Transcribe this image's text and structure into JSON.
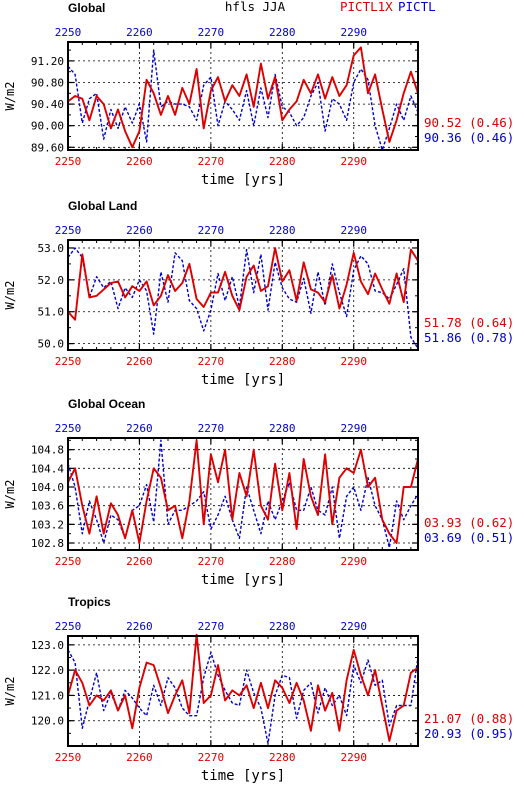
{
  "header": {
    "variable": "hfls JJA",
    "series_label_1": "PICTL1X",
    "series_label_2": "PICTL"
  },
  "colors": {
    "series_1": "#dd0000",
    "series_2": "#0000cc",
    "axis": "#000000"
  },
  "chart_data": [
    {
      "type": "line",
      "title": "Global",
      "xlabel": "time [yrs]",
      "ylabel": "W/m2",
      "xlim": [
        2250,
        2299
      ],
      "ylim": [
        89.55,
        91.55
      ],
      "x_ticks": [
        2250,
        2260,
        2270,
        2280,
        2290
      ],
      "x_tick_labels_bottom": [
        "2250",
        "2260",
        "2270",
        "2280",
        "2290"
      ],
      "x_tick_labels_top": [
        "2250",
        "2260",
        "2270",
        "2280",
        "2290"
      ],
      "y_ticks": [
        89.6,
        90.0,
        90.4,
        90.8,
        91.2
      ],
      "y_tick_labels": [
        "89.60",
        "90.00",
        "90.40",
        "90.80",
        "91.20"
      ],
      "grid": true,
      "x": [
        2250,
        2251,
        2252,
        2253,
        2254,
        2255,
        2256,
        2257,
        2258,
        2259,
        2260,
        2261,
        2262,
        2263,
        2264,
        2265,
        2266,
        2267,
        2268,
        2269,
        2270,
        2271,
        2272,
        2273,
        2274,
        2275,
        2276,
        2277,
        2278,
        2279,
        2280,
        2281,
        2282,
        2283,
        2284,
        2285,
        2286,
        2287,
        2288,
        2289,
        2290,
        2291,
        2292,
        2293,
        2294,
        2295,
        2296,
        2297,
        2298,
        2299
      ],
      "series": [
        {
          "name": "PICTL1X",
          "color": "#dd0000",
          "dash": "solid",
          "values": [
            90.45,
            90.55,
            90.5,
            90.1,
            90.55,
            90.4,
            89.95,
            90.3,
            89.9,
            89.6,
            89.9,
            90.85,
            90.6,
            90.2,
            90.55,
            90.2,
            90.7,
            90.4,
            91.05,
            89.95,
            90.65,
            90.9,
            90.45,
            90.75,
            90.55,
            90.95,
            90.35,
            91.15,
            90.5,
            90.9,
            90.1,
            90.3,
            90.45,
            90.85,
            90.6,
            90.95,
            90.5,
            90.9,
            90.55,
            90.75,
            91.3,
            91.45,
            90.6,
            90.95,
            90.3,
            89.7,
            90.1,
            90.6,
            91.0,
            90.6
          ]
        },
        {
          "name": "PICTL",
          "color": "#0000cc",
          "dash": "dashed",
          "values": [
            91.1,
            90.95,
            90.05,
            90.5,
            90.6,
            89.75,
            90.3,
            89.95,
            90.35,
            90.05,
            90.4,
            89.7,
            91.4,
            90.35,
            90.45,
            90.4,
            90.4,
            90.35,
            90.1,
            90.75,
            90.9,
            90.0,
            90.45,
            90.3,
            90.1,
            90.65,
            90.0,
            90.7,
            90.15,
            90.95,
            90.35,
            90.25,
            90.0,
            90.15,
            90.55,
            90.8,
            89.9,
            90.5,
            90.4,
            90.1,
            90.8,
            91.05,
            90.85,
            90.0,
            89.55,
            89.95,
            90.4,
            90.1,
            90.55,
            90.25
          ]
        }
      ],
      "stats": [
        {
          "text": "90.52 (0.46)",
          "color": "#dd0000"
        },
        {
          "text": "90.36 (0.46)",
          "color": "#0000cc"
        }
      ]
    },
    {
      "type": "line",
      "title": "Global Land",
      "xlabel": "time [yrs]",
      "ylabel": "W/m2",
      "xlim": [
        2250,
        2299
      ],
      "ylim": [
        49.8,
        53.25
      ],
      "x_ticks": [
        2250,
        2260,
        2270,
        2280,
        2290
      ],
      "x_tick_labels_bottom": [
        "2250",
        "2260",
        "2270",
        "2280",
        "2290"
      ],
      "x_tick_labels_top": [
        "2250",
        "2260",
        "2270",
        "2280",
        "2290"
      ],
      "y_ticks": [
        50.0,
        51.0,
        52.0,
        53.0
      ],
      "y_tick_labels": [
        "50.0",
        "51.0",
        "52.0",
        "53.0"
      ],
      "grid": true,
      "x": [
        2250,
        2251,
        2252,
        2253,
        2254,
        2255,
        2256,
        2257,
        2258,
        2259,
        2260,
        2261,
        2262,
        2263,
        2264,
        2265,
        2266,
        2267,
        2268,
        2269,
        2270,
        2271,
        2272,
        2273,
        2274,
        2275,
        2276,
        2277,
        2278,
        2279,
        2280,
        2281,
        2282,
        2283,
        2284,
        2285,
        2286,
        2287,
        2288,
        2289,
        2290,
        2291,
        2292,
        2293,
        2294,
        2295,
        2296,
        2297,
        2298,
        2299
      ],
      "series": [
        {
          "name": "PICTL1X",
          "color": "#dd0000",
          "dash": "solid",
          "values": [
            51.0,
            50.75,
            52.8,
            51.45,
            51.5,
            51.7,
            51.9,
            51.95,
            51.45,
            51.8,
            51.65,
            51.95,
            51.2,
            51.5,
            52.15,
            51.65,
            51.9,
            52.5,
            51.4,
            51.15,
            51.6,
            51.6,
            52.25,
            51.5,
            51.05,
            52.1,
            52.45,
            51.65,
            51.8,
            53.0,
            51.95,
            52.3,
            51.35,
            52.55,
            51.7,
            51.6,
            51.3,
            52.15,
            51.1,
            51.85,
            52.85,
            51.95,
            51.55,
            52.2,
            51.7,
            51.25,
            52.2,
            51.3,
            52.95,
            52.6
          ]
        },
        {
          "name": "PICTL",
          "color": "#0000cc",
          "dash": "dashed",
          "values": [
            52.7,
            53.0,
            52.7,
            51.45,
            52.1,
            51.75,
            51.95,
            51.1,
            51.75,
            51.45,
            52.0,
            51.65,
            50.3,
            52.25,
            51.3,
            52.85,
            52.6,
            51.35,
            51.1,
            50.4,
            51.05,
            52.2,
            51.35,
            52.1,
            51.15,
            52.95,
            51.6,
            52.8,
            51.05,
            52.55,
            51.75,
            51.4,
            51.3,
            52.05,
            50.95,
            52.25,
            51.2,
            52.5,
            51.6,
            50.85,
            52.3,
            52.75,
            52.5,
            51.65,
            51.6,
            51.4,
            51.85,
            52.35,
            50.2,
            49.85
          ]
        }
      ],
      "stats": [
        {
          "text": "51.78 (0.64)",
          "color": "#dd0000"
        },
        {
          "text": "51.86 (0.78)",
          "color": "#0000cc"
        }
      ]
    },
    {
      "type": "line",
      "title": "Global Ocean",
      "xlabel": "time [yrs]",
      "ylabel": "W/m2",
      "xlim": [
        2250,
        2299
      ],
      "ylim": [
        102.65,
        105.05
      ],
      "x_ticks": [
        2250,
        2260,
        2270,
        2280,
        2290
      ],
      "x_tick_labels_bottom": [
        "2250",
        "2260",
        "2270",
        "2280",
        "2290"
      ],
      "x_tick_labels_top": [
        "2250",
        "2260",
        "2270",
        "2280",
        "2290"
      ],
      "y_ticks": [
        102.8,
        103.2,
        103.6,
        104.0,
        104.4,
        104.8
      ],
      "y_tick_labels": [
        "102.8",
        "103.2",
        "103.6",
        "104.0",
        "104.4",
        "104.8"
      ],
      "grid": true,
      "x": [
        2250,
        2251,
        2252,
        2253,
        2254,
        2255,
        2256,
        2257,
        2258,
        2259,
        2260,
        2261,
        2262,
        2263,
        2264,
        2265,
        2266,
        2267,
        2268,
        2269,
        2270,
        2271,
        2272,
        2273,
        2274,
        2275,
        2276,
        2277,
        2278,
        2279,
        2280,
        2281,
        2282,
        2283,
        2284,
        2285,
        2286,
        2287,
        2288,
        2289,
        2290,
        2291,
        2292,
        2293,
        2294,
        2295,
        2296,
        2297,
        2298,
        2299
      ],
      "series": [
        {
          "name": "PICTL1X",
          "color": "#dd0000",
          "dash": "solid",
          "values": [
            104.1,
            104.4,
            103.6,
            103.0,
            103.8,
            103.0,
            103.65,
            103.4,
            102.9,
            103.5,
            102.8,
            103.7,
            104.4,
            104.2,
            103.5,
            103.6,
            102.9,
            103.7,
            105.0,
            103.2,
            104.7,
            104.1,
            104.8,
            103.3,
            104.3,
            103.8,
            104.8,
            103.6,
            103.3,
            104.5,
            103.5,
            104.3,
            103.1,
            104.6,
            103.8,
            103.4,
            104.7,
            103.2,
            104.2,
            104.4,
            104.3,
            104.8,
            104.0,
            104.2,
            103.3,
            103.0,
            102.8,
            104.0,
            104.0,
            104.6
          ]
        },
        {
          "name": "PICTL",
          "color": "#0000cc",
          "dash": "dashed",
          "values": [
            104.5,
            104.0,
            103.0,
            103.7,
            103.3,
            102.8,
            103.4,
            103.3,
            102.9,
            103.5,
            103.6,
            104.05,
            103.25,
            105.0,
            103.2,
            103.5,
            103.5,
            103.6,
            103.7,
            103.9,
            103.1,
            103.4,
            103.8,
            103.3,
            102.9,
            104.0,
            103.5,
            103.0,
            103.7,
            103.3,
            103.7,
            104.1,
            103.5,
            103.5,
            104.0,
            103.5,
            103.4,
            104.0,
            102.9,
            103.8,
            104.0,
            103.5,
            104.2,
            103.6,
            103.3,
            102.7,
            103.7,
            103.3,
            103.6,
            103.85
          ]
        }
      ],
      "stats": [
        {
          "text": "03.93 (0.62)",
          "color": "#dd0000"
        },
        {
          "text": "03.69 (0.51)",
          "color": "#0000cc"
        }
      ]
    },
    {
      "type": "line",
      "title": "Tropics",
      "xlabel": "time [yrs]",
      "ylabel": "W/m2",
      "xlim": [
        2250,
        2299
      ],
      "ylim": [
        119.0,
        123.35
      ],
      "x_ticks": [
        2250,
        2260,
        2270,
        2280,
        2290
      ],
      "x_tick_labels_bottom": [
        "2250",
        "2260",
        "2270",
        "2280",
        "2290"
      ],
      "x_tick_labels_top": [
        "2250",
        "2260",
        "2270",
        "2280",
        "2290"
      ],
      "y_ticks": [
        120.0,
        121.0,
        122.0,
        123.0
      ],
      "y_tick_labels": [
        "120.0",
        "121.0",
        "122.0",
        "123.0"
      ],
      "grid": true,
      "x": [
        2250,
        2251,
        2252,
        2253,
        2254,
        2255,
        2256,
        2257,
        2258,
        2259,
        2260,
        2261,
        2262,
        2263,
        2264,
        2265,
        2266,
        2267,
        2268,
        2269,
        2270,
        2271,
        2272,
        2273,
        2274,
        2275,
        2276,
        2277,
        2278,
        2279,
        2280,
        2281,
        2282,
        2283,
        2284,
        2285,
        2286,
        2287,
        2288,
        2289,
        2290,
        2291,
        2292,
        2293,
        2294,
        2295,
        2296,
        2297,
        2298,
        2299
      ],
      "series": [
        {
          "name": "PICTL1X",
          "color": "#dd0000",
          "dash": "solid",
          "values": [
            121.0,
            122.0,
            121.5,
            120.6,
            121.0,
            120.8,
            121.2,
            120.4,
            121.0,
            119.7,
            121.3,
            122.3,
            122.2,
            121.3,
            120.3,
            121.0,
            121.6,
            120.3,
            123.4,
            120.7,
            121.0,
            122.2,
            120.8,
            121.2,
            121.0,
            121.4,
            120.5,
            121.5,
            120.5,
            121.6,
            121.3,
            120.7,
            121.5,
            120.8,
            119.6,
            121.4,
            120.4,
            121.1,
            119.6,
            121.6,
            122.8,
            121.8,
            121.0,
            122.0,
            120.6,
            119.2,
            120.4,
            120.6,
            121.9,
            122.1
          ]
        },
        {
          "name": "PICTL",
          "color": "#0000cc",
          "dash": "dashed",
          "values": [
            122.8,
            122.3,
            119.7,
            120.8,
            121.9,
            120.4,
            121.1,
            120.4,
            121.2,
            120.9,
            120.5,
            120.2,
            121.4,
            120.6,
            121.7,
            121.3,
            120.5,
            120.2,
            120.2,
            121.7,
            122.7,
            121.8,
            121.2,
            120.7,
            120.6,
            122.0,
            121.1,
            120.5,
            119.1,
            121.0,
            121.8,
            121.7,
            120.1,
            121.2,
            121.5,
            120.3,
            121.3,
            120.6,
            121.0,
            120.2,
            122.2,
            121.5,
            122.4,
            121.4,
            121.6,
            119.8,
            120.6,
            120.6,
            120.6,
            122.5
          ]
        }
      ],
      "stats": [
        {
          "text": "21.07 (0.88)",
          "color": "#dd0000"
        },
        {
          "text": "20.93 (0.95)",
          "color": "#0000cc"
        }
      ]
    }
  ]
}
